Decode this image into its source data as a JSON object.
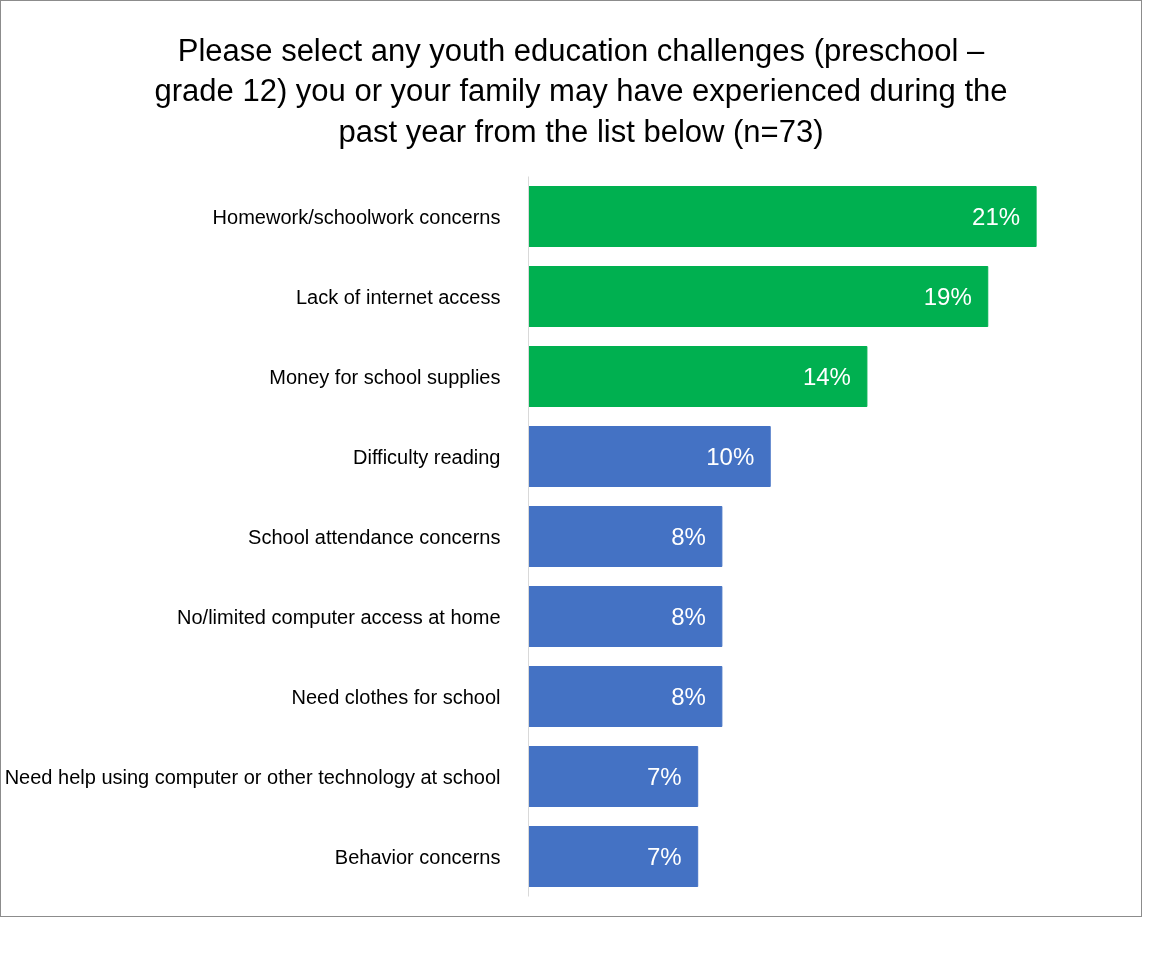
{
  "chart_data": {
    "type": "bar",
    "orientation": "horizontal",
    "title": "Please select any youth education challenges (preschool – grade 12) you or your family may have experienced during the past year from the list below (n=73)",
    "categories": [
      "Homework/schoolwork concerns",
      "Lack of internet access",
      "Money for school supplies",
      "Difficulty reading",
      "School attendance concerns",
      "No/limited computer access at home",
      "Need clothes for school",
      "Need help using computer or other technology at school",
      "Behavior concerns"
    ],
    "values": [
      21,
      19,
      14,
      10,
      8,
      8,
      8,
      7,
      7
    ],
    "colors": [
      "#00b050",
      "#00b050",
      "#00b050",
      "#4472c4",
      "#4472c4",
      "#4472c4",
      "#4472c4",
      "#4472c4",
      "#4472c4"
    ],
    "value_labels": [
      "21%",
      "19%",
      "14%",
      "10%",
      "8%",
      "8%",
      "8%",
      "7%",
      "7%"
    ],
    "grid": false
  }
}
